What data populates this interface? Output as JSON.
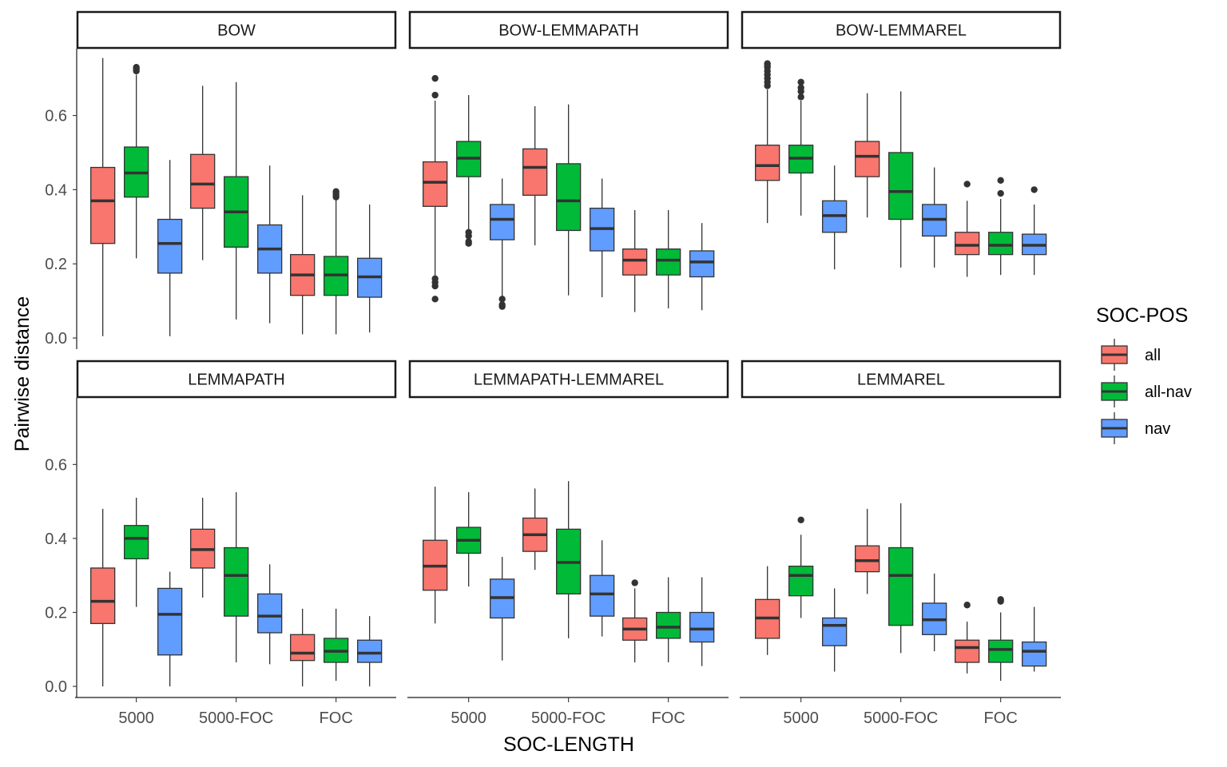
{
  "chart_data": {
    "type": "boxplot",
    "xlabel": "SOC-LENGTH",
    "ylabel": "Pairwise distance",
    "ylim": [
      -0.03,
      0.78
    ],
    "yticks": [
      0.0,
      0.2,
      0.4,
      0.6
    ],
    "ytick_labels": [
      "0.0",
      "0.2",
      "0.4",
      "0.6"
    ],
    "categories": [
      "5000",
      "5000-FOC",
      "FOC"
    ],
    "legend": {
      "title": "SOC-POS",
      "position": "right",
      "entries": [
        {
          "name": "all",
          "color": "#F8766D"
        },
        {
          "name": "all-nav",
          "color": "#00BA38"
        },
        {
          "name": "nav",
          "color": "#619CFF"
        }
      ]
    },
    "grid": false,
    "facets": [
      {
        "title": "BOW",
        "groups": [
          {
            "category": "5000",
            "boxes": [
              {
                "series": "all",
                "min": 0.005,
                "q1": 0.255,
                "median": 0.37,
                "q3": 0.46,
                "max": 0.755,
                "outliers": []
              },
              {
                "series": "all-nav",
                "min": 0.215,
                "q1": 0.38,
                "median": 0.445,
                "q3": 0.515,
                "max": 0.71,
                "outliers": [
                  0.72,
                  0.725,
                  0.73
                ]
              },
              {
                "series": "nav",
                "min": 0.005,
                "q1": 0.175,
                "median": 0.255,
                "q3": 0.32,
                "max": 0.48,
                "outliers": []
              }
            ]
          },
          {
            "category": "5000-FOC",
            "boxes": [
              {
                "series": "all",
                "min": 0.21,
                "q1": 0.35,
                "median": 0.415,
                "q3": 0.495,
                "max": 0.68,
                "outliers": []
              },
              {
                "series": "all-nav",
                "min": 0.05,
                "q1": 0.245,
                "median": 0.34,
                "q3": 0.435,
                "max": 0.69,
                "outliers": []
              },
              {
                "series": "nav",
                "min": 0.04,
                "q1": 0.175,
                "median": 0.24,
                "q3": 0.305,
                "max": 0.465,
                "outliers": []
              }
            ]
          },
          {
            "category": "FOC",
            "boxes": [
              {
                "series": "all",
                "min": 0.01,
                "q1": 0.115,
                "median": 0.17,
                "q3": 0.225,
                "max": 0.385,
                "outliers": []
              },
              {
                "series": "all-nav",
                "min": 0.01,
                "q1": 0.115,
                "median": 0.17,
                "q3": 0.22,
                "max": 0.375,
                "outliers": [
                  0.38,
                  0.385,
                  0.39,
                  0.395
                ]
              },
              {
                "series": "nav",
                "min": 0.015,
                "q1": 0.11,
                "median": 0.165,
                "q3": 0.215,
                "max": 0.36,
                "outliers": []
              }
            ]
          }
        ]
      },
      {
        "title": "BOW-LEMMAPATH",
        "groups": [
          {
            "category": "5000",
            "boxes": [
              {
                "series": "all",
                "min": 0.165,
                "q1": 0.355,
                "median": 0.42,
                "q3": 0.475,
                "max": 0.64,
                "outliers": [
                  0.105,
                  0.14,
                  0.15,
                  0.16,
                  0.655,
                  0.7
                ]
              },
              {
                "series": "all-nav",
                "min": 0.29,
                "q1": 0.435,
                "median": 0.485,
                "q3": 0.53,
                "max": 0.655,
                "outliers": [
                  0.255,
                  0.26,
                  0.275,
                  0.285
                ]
              },
              {
                "series": "nav",
                "min": 0.11,
                "q1": 0.265,
                "median": 0.32,
                "q3": 0.36,
                "max": 0.43,
                "outliers": [
                  0.085,
                  0.09,
                  0.105
                ]
              }
            ]
          },
          {
            "category": "5000-FOC",
            "boxes": [
              {
                "series": "all",
                "min": 0.25,
                "q1": 0.385,
                "median": 0.46,
                "q3": 0.51,
                "max": 0.625,
                "outliers": []
              },
              {
                "series": "all-nav",
                "min": 0.115,
                "q1": 0.29,
                "median": 0.37,
                "q3": 0.47,
                "max": 0.63,
                "outliers": []
              },
              {
                "series": "nav",
                "min": 0.11,
                "q1": 0.235,
                "median": 0.295,
                "q3": 0.35,
                "max": 0.43,
                "outliers": []
              }
            ]
          },
          {
            "category": "FOC",
            "boxes": [
              {
                "series": "all",
                "min": 0.07,
                "q1": 0.17,
                "median": 0.21,
                "q3": 0.24,
                "max": 0.345,
                "outliers": []
              },
              {
                "series": "all-nav",
                "min": 0.08,
                "q1": 0.17,
                "median": 0.21,
                "q3": 0.24,
                "max": 0.345,
                "outliers": []
              },
              {
                "series": "nav",
                "min": 0.075,
                "q1": 0.165,
                "median": 0.205,
                "q3": 0.235,
                "max": 0.31,
                "outliers": []
              }
            ]
          }
        ]
      },
      {
        "title": "BOW-LEMMAREL",
        "groups": [
          {
            "category": "5000",
            "boxes": [
              {
                "series": "all",
                "min": 0.31,
                "q1": 0.425,
                "median": 0.465,
                "q3": 0.52,
                "max": 0.67,
                "outliers": [
                  0.68,
                  0.69,
                  0.7,
                  0.71,
                  0.72,
                  0.73,
                  0.735,
                  0.74
                ]
              },
              {
                "series": "all-nav",
                "min": 0.33,
                "q1": 0.445,
                "median": 0.485,
                "q3": 0.52,
                "max": 0.64,
                "outliers": [
                  0.65,
                  0.665,
                  0.675,
                  0.69
                ]
              },
              {
                "series": "nav",
                "min": 0.185,
                "q1": 0.285,
                "median": 0.33,
                "q3": 0.37,
                "max": 0.465,
                "outliers": []
              }
            ]
          },
          {
            "category": "5000-FOC",
            "boxes": [
              {
                "series": "all",
                "min": 0.325,
                "q1": 0.435,
                "median": 0.49,
                "q3": 0.53,
                "max": 0.66,
                "outliers": []
              },
              {
                "series": "all-nav",
                "min": 0.19,
                "q1": 0.32,
                "median": 0.395,
                "q3": 0.5,
                "max": 0.665,
                "outliers": []
              },
              {
                "series": "nav",
                "min": 0.19,
                "q1": 0.275,
                "median": 0.32,
                "q3": 0.36,
                "max": 0.46,
                "outliers": []
              }
            ]
          },
          {
            "category": "FOC",
            "boxes": [
              {
                "series": "all",
                "min": 0.165,
                "q1": 0.225,
                "median": 0.25,
                "q3": 0.285,
                "max": 0.37,
                "outliers": [
                  0.415
                ]
              },
              {
                "series": "all-nav",
                "min": 0.17,
                "q1": 0.225,
                "median": 0.25,
                "q3": 0.285,
                "max": 0.375,
                "outliers": [
                  0.39,
                  0.425
                ]
              },
              {
                "series": "nav",
                "min": 0.17,
                "q1": 0.225,
                "median": 0.25,
                "q3": 0.28,
                "max": 0.36,
                "outliers": [
                  0.4
                ]
              }
            ]
          }
        ]
      },
      {
        "title": "LEMMAPATH",
        "groups": [
          {
            "category": "5000",
            "boxes": [
              {
                "series": "all",
                "min": 0.0,
                "q1": 0.17,
                "median": 0.23,
                "q3": 0.32,
                "max": 0.48,
                "outliers": []
              },
              {
                "series": "all-nav",
                "min": 0.215,
                "q1": 0.345,
                "median": 0.4,
                "q3": 0.435,
                "max": 0.51,
                "outliers": []
              },
              {
                "series": "nav",
                "min": 0.0,
                "q1": 0.085,
                "median": 0.195,
                "q3": 0.265,
                "max": 0.31,
                "outliers": []
              }
            ]
          },
          {
            "category": "5000-FOC",
            "boxes": [
              {
                "series": "all",
                "min": 0.24,
                "q1": 0.32,
                "median": 0.37,
                "q3": 0.425,
                "max": 0.51,
                "outliers": []
              },
              {
                "series": "all-nav",
                "min": 0.065,
                "q1": 0.19,
                "median": 0.3,
                "q3": 0.375,
                "max": 0.525,
                "outliers": []
              },
              {
                "series": "nav",
                "min": 0.06,
                "q1": 0.145,
                "median": 0.19,
                "q3": 0.25,
                "max": 0.33,
                "outliers": []
              }
            ]
          },
          {
            "category": "FOC",
            "boxes": [
              {
                "series": "all",
                "min": 0.0,
                "q1": 0.07,
                "median": 0.09,
                "q3": 0.14,
                "max": 0.21,
                "outliers": []
              },
              {
                "series": "all-nav",
                "min": 0.015,
                "q1": 0.065,
                "median": 0.095,
                "q3": 0.13,
                "max": 0.21,
                "outliers": []
              },
              {
                "series": "nav",
                "min": 0.0,
                "q1": 0.065,
                "median": 0.09,
                "q3": 0.125,
                "max": 0.19,
                "outliers": []
              }
            ]
          }
        ]
      },
      {
        "title": "LEMMAPATH-LEMMAREL",
        "groups": [
          {
            "category": "5000",
            "boxes": [
              {
                "series": "all",
                "min": 0.17,
                "q1": 0.26,
                "median": 0.325,
                "q3": 0.395,
                "max": 0.54,
                "outliers": []
              },
              {
                "series": "all-nav",
                "min": 0.27,
                "q1": 0.36,
                "median": 0.395,
                "q3": 0.43,
                "max": 0.525,
                "outliers": []
              },
              {
                "series": "nav",
                "min": 0.07,
                "q1": 0.185,
                "median": 0.24,
                "q3": 0.29,
                "max": 0.35,
                "outliers": []
              }
            ]
          },
          {
            "category": "5000-FOC",
            "boxes": [
              {
                "series": "all",
                "min": 0.315,
                "q1": 0.365,
                "median": 0.41,
                "q3": 0.455,
                "max": 0.535,
                "outliers": []
              },
              {
                "series": "all-nav",
                "min": 0.13,
                "q1": 0.25,
                "median": 0.335,
                "q3": 0.425,
                "max": 0.555,
                "outliers": []
              },
              {
                "series": "nav",
                "min": 0.135,
                "q1": 0.19,
                "median": 0.25,
                "q3": 0.3,
                "max": 0.395,
                "outliers": []
              }
            ]
          },
          {
            "category": "FOC",
            "boxes": [
              {
                "series": "all",
                "min": 0.065,
                "q1": 0.125,
                "median": 0.155,
                "q3": 0.185,
                "max": 0.265,
                "outliers": [
                  0.28
                ]
              },
              {
                "series": "all-nav",
                "min": 0.065,
                "q1": 0.13,
                "median": 0.16,
                "q3": 0.2,
                "max": 0.295,
                "outliers": []
              },
              {
                "series": "nav",
                "min": 0.055,
                "q1": 0.12,
                "median": 0.155,
                "q3": 0.2,
                "max": 0.295,
                "outliers": []
              }
            ]
          }
        ]
      },
      {
        "title": "LEMMAREL",
        "groups": [
          {
            "category": "5000",
            "boxes": [
              {
                "series": "all",
                "min": 0.085,
                "q1": 0.13,
                "median": 0.185,
                "q3": 0.235,
                "max": 0.325,
                "outliers": []
              },
              {
                "series": "all-nav",
                "min": 0.185,
                "q1": 0.245,
                "median": 0.3,
                "q3": 0.325,
                "max": 0.41,
                "outliers": [
                  0.45
                ]
              },
              {
                "series": "nav",
                "min": 0.04,
                "q1": 0.11,
                "median": 0.165,
                "q3": 0.185,
                "max": 0.265,
                "outliers": []
              }
            ]
          },
          {
            "category": "5000-FOC",
            "boxes": [
              {
                "series": "all",
                "min": 0.25,
                "q1": 0.31,
                "median": 0.34,
                "q3": 0.38,
                "max": 0.48,
                "outliers": []
              },
              {
                "series": "all-nav",
                "min": 0.09,
                "q1": 0.165,
                "median": 0.3,
                "q3": 0.375,
                "max": 0.495,
                "outliers": []
              },
              {
                "series": "nav",
                "min": 0.095,
                "q1": 0.14,
                "median": 0.18,
                "q3": 0.225,
                "max": 0.305,
                "outliers": []
              }
            ]
          },
          {
            "category": "FOC",
            "boxes": [
              {
                "series": "all",
                "min": 0.035,
                "q1": 0.065,
                "median": 0.105,
                "q3": 0.125,
                "max": 0.175,
                "outliers": [
                  0.22
                ]
              },
              {
                "series": "all-nav",
                "min": 0.015,
                "q1": 0.065,
                "median": 0.1,
                "q3": 0.125,
                "max": 0.2,
                "outliers": [
                  0.23,
                  0.235
                ]
              },
              {
                "series": "nav",
                "min": 0.04,
                "q1": 0.055,
                "median": 0.095,
                "q3": 0.12,
                "max": 0.215,
                "outliers": []
              }
            ]
          }
        ]
      }
    ]
  }
}
